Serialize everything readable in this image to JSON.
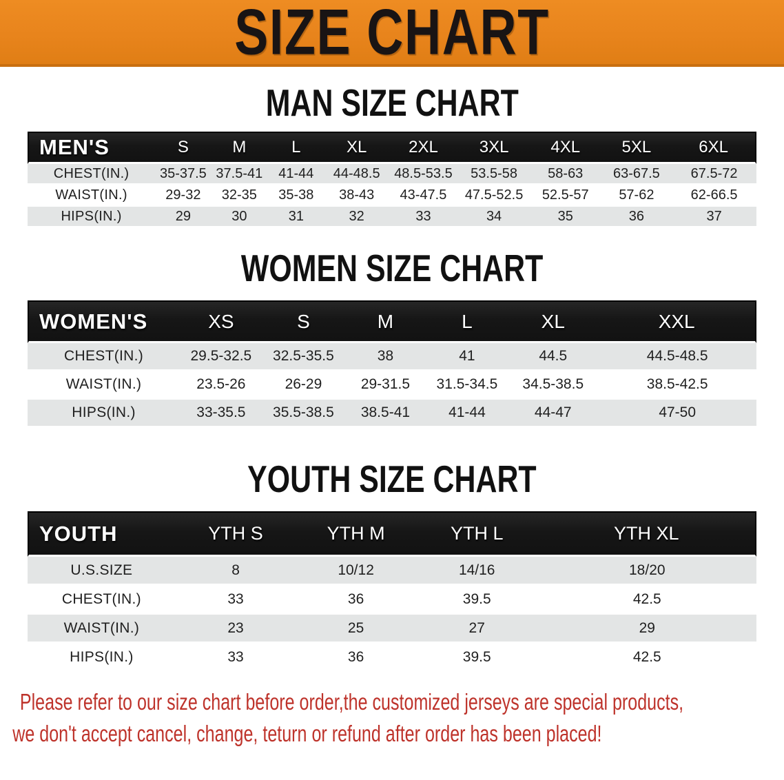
{
  "banner": {
    "title": "SIZE CHART"
  },
  "tables": {
    "men": {
      "heading": "MAN SIZE CHART",
      "label": "MEN'S",
      "columns": [
        "S",
        "M",
        "L",
        "XL",
        "2XL",
        "3XL",
        "4XL",
        "5XL",
        "6XL"
      ],
      "rows": [
        {
          "label": "CHEST(IN.)",
          "values": [
            "35-37.5",
            "37.5-41",
            "41-44",
            "44-48.5",
            "48.5-53.5",
            "53.5-58",
            "58-63",
            "63-67.5",
            "67.5-72"
          ]
        },
        {
          "label": "WAIST(IN.)",
          "values": [
            "29-32",
            "32-35",
            "35-38",
            "38-43",
            "43-47.5",
            "47.5-52.5",
            "52.5-57",
            "57-62",
            "62-66.5"
          ]
        },
        {
          "label": "HIPS(IN.)",
          "values": [
            "29",
            "30",
            "31",
            "32",
            "33",
            "34",
            "35",
            "36",
            "37"
          ]
        }
      ]
    },
    "women": {
      "heading": "WOMEN SIZE CHART",
      "label": "WOMEN'S",
      "columns": [
        "XS",
        "S",
        "M",
        "L",
        "XL",
        "XXL"
      ],
      "rows": [
        {
          "label": "CHEST(IN.)",
          "values": [
            "29.5-32.5",
            "32.5-35.5",
            "38",
            "41",
            "44.5",
            "44.5-48.5"
          ]
        },
        {
          "label": "WAIST(IN.)",
          "values": [
            "23.5-26",
            "26-29",
            "29-31.5",
            "31.5-34.5",
            "34.5-38.5",
            "38.5-42.5"
          ]
        },
        {
          "label": "HIPS(IN.)",
          "values": [
            "33-35.5",
            "35.5-38.5",
            "38.5-41",
            "41-44",
            "44-47",
            "47-50"
          ]
        }
      ]
    },
    "youth": {
      "heading": "YOUTH SIZE CHART",
      "label": "YOUTH",
      "columns": [
        "YTH S",
        "YTH M",
        "YTH L",
        "YTH XL"
      ],
      "rows": [
        {
          "label": "U.S.SIZE",
          "values": [
            "8",
            "10/12",
            "14/16",
            "18/20"
          ]
        },
        {
          "label": "CHEST(IN.)",
          "values": [
            "33",
            "36",
            "39.5",
            "42.5"
          ]
        },
        {
          "label": "WAIST(IN.)",
          "values": [
            "23",
            "25",
            "27",
            "29"
          ]
        },
        {
          "label": "HIPS(IN.)",
          "values": [
            "33",
            "36",
            "39.5",
            "42.5"
          ]
        }
      ]
    }
  },
  "footer": {
    "lines": [
      "Please refer to our size chart before order,the customized jerseys are special products,",
      "we don't accept cancel, change, teturn or refund after order has been placed!"
    ]
  },
  "colors": {
    "banner_orange": "#E8841C",
    "banner_orange_dark": "#C96F10",
    "bar_black": "#1B1B1B",
    "row_gray": "#E3E5E5",
    "footer_red": "#BE332B"
  }
}
